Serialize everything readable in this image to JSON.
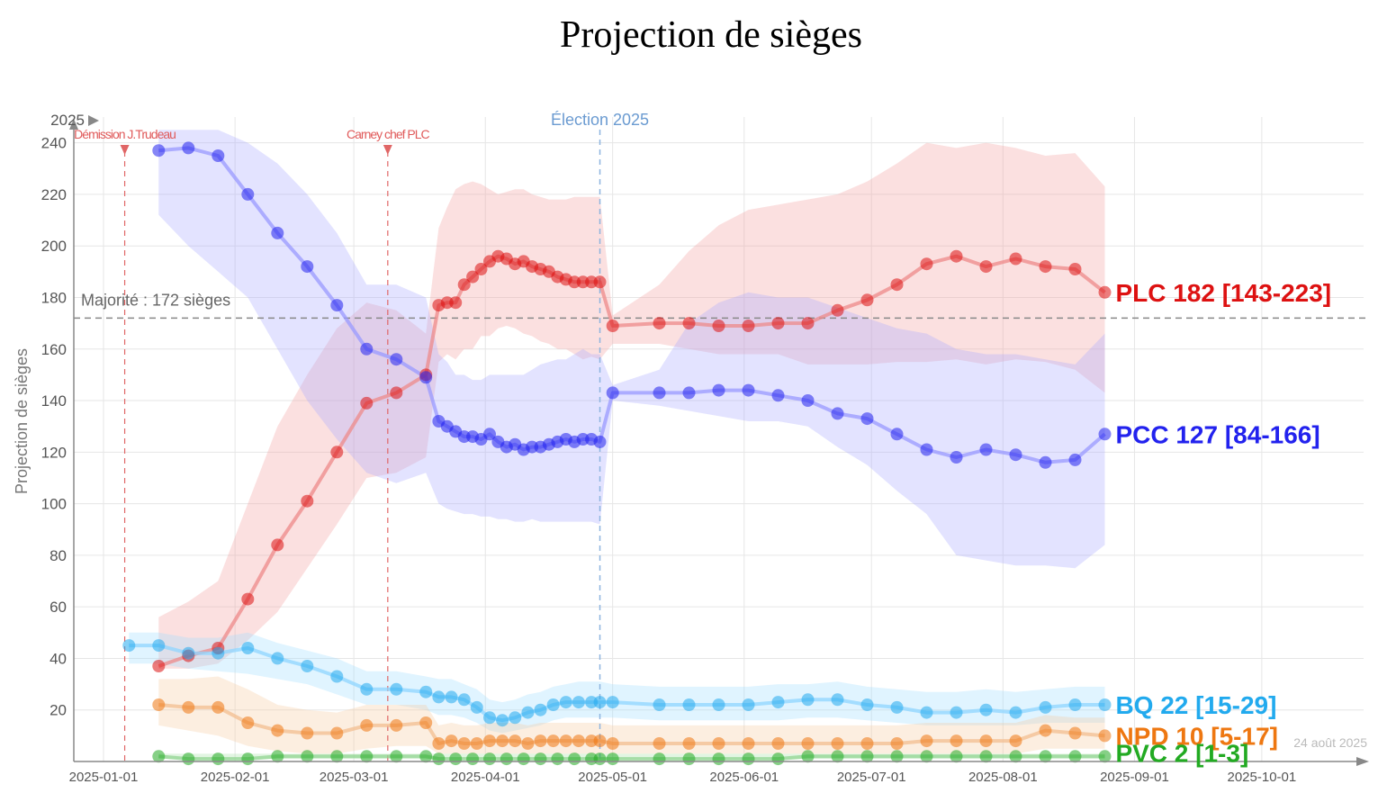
{
  "chart_data": {
    "type": "line",
    "title": "Projection de sièges",
    "ylabel": "Projection de sièges",
    "xlabel": "",
    "ylim": [
      0,
      250
    ],
    "yticks": [
      20,
      40,
      60,
      80,
      100,
      120,
      140,
      160,
      180,
      200,
      220,
      240
    ],
    "xlim": [
      "2024-12-25",
      "2025-10-25"
    ],
    "xticks": [
      {
        "date": "2025-01-01",
        "label": "2025-01-01"
      },
      {
        "date": "2025-02-01",
        "label": "2025-02-01"
      },
      {
        "date": "2025-03-01",
        "label": "2025-03-01"
      },
      {
        "date": "2025-04-01",
        "label": "2025-04-01"
      },
      {
        "date": "2025-05-01",
        "label": "2025-05-01"
      },
      {
        "date": "2025-06-01",
        "label": "2025-06-01"
      },
      {
        "date": "2025-07-01",
        "label": "2025-07-01"
      },
      {
        "date": "2025-08-01",
        "label": "2025-08-01"
      },
      {
        "date": "2025-09-01",
        "label": "2025-09-01"
      },
      {
        "date": "2025-10-01",
        "label": "2025-10-01"
      }
    ],
    "grid": true,
    "year_marker": "2025",
    "majority": {
      "value": 172,
      "label": "Majorité : 172 sièges"
    },
    "events": [
      {
        "date": "2025-01-06",
        "label": "Démission J.Trudeau"
      },
      {
        "date": "2025-03-09",
        "label": "Carney chef PLC"
      }
    ],
    "election": {
      "date": "2025-04-28",
      "label": "Élection 2025"
    },
    "date_stamp": "24 août 2025",
    "series": [
      {
        "name": "PLC",
        "color": "#dd1111",
        "end_label": "PLC 182 [143-223]",
        "x": [
          "2025-01-14",
          "2025-01-21",
          "2025-01-28",
          "2025-02-04",
          "2025-02-11",
          "2025-02-18",
          "2025-02-25",
          "2025-03-04",
          "2025-03-11",
          "2025-03-18",
          "2025-03-21",
          "2025-03-23",
          "2025-03-25",
          "2025-03-27",
          "2025-03-29",
          "2025-03-31",
          "2025-04-02",
          "2025-04-04",
          "2025-04-06",
          "2025-04-08",
          "2025-04-10",
          "2025-04-12",
          "2025-04-14",
          "2025-04-16",
          "2025-04-18",
          "2025-04-20",
          "2025-04-22",
          "2025-04-24",
          "2025-04-26",
          "2025-04-28",
          "2025-05-01",
          "2025-05-12",
          "2025-05-19",
          "2025-05-26",
          "2025-06-02",
          "2025-06-09",
          "2025-06-16",
          "2025-06-23",
          "2025-06-30",
          "2025-07-07",
          "2025-07-14",
          "2025-07-21",
          "2025-07-28",
          "2025-08-04",
          "2025-08-11",
          "2025-08-18",
          "2025-08-25"
        ],
        "values": [
          37,
          41,
          44,
          63,
          84,
          101,
          120,
          139,
          143,
          150,
          177,
          178,
          178,
          185,
          188,
          191,
          194,
          196,
          195,
          193,
          194,
          192,
          191,
          190,
          188,
          187,
          186,
          186,
          186,
          186,
          169,
          170,
          170,
          169,
          169,
          170,
          170,
          175,
          179,
          185,
          193,
          196,
          192,
          195,
          192,
          191,
          182
        ],
        "lower": [
          36,
          36,
          38,
          47,
          58,
          75,
          92,
          110,
          112,
          118,
          155,
          158,
          156,
          160,
          160,
          165,
          165,
          168,
          169,
          168,
          166,
          165,
          163,
          162,
          160,
          160,
          158,
          156,
          157,
          156,
          162,
          162,
          160,
          158,
          158,
          158,
          154,
          154,
          154,
          155,
          155,
          156,
          154,
          156,
          155,
          152,
          143
        ],
        "upper": [
          56,
          62,
          70,
          100,
          130,
          150,
          168,
          178,
          175,
          166,
          207,
          215,
          222,
          224,
          225,
          224,
          222,
          220,
          221,
          222,
          222,
          220,
          219,
          218,
          218,
          218,
          219,
          219,
          219,
          219,
          173,
          185,
          198,
          208,
          214,
          216,
          218,
          220,
          225,
          232,
          240,
          238,
          240,
          238,
          235,
          236,
          223
        ]
      },
      {
        "name": "PCC",
        "color": "#2222ee",
        "end_label": "PCC 127 [84-166]",
        "x": [
          "2025-01-14",
          "2025-01-21",
          "2025-01-28",
          "2025-02-04",
          "2025-02-11",
          "2025-02-18",
          "2025-02-25",
          "2025-03-04",
          "2025-03-11",
          "2025-03-18",
          "2025-03-21",
          "2025-03-23",
          "2025-03-25",
          "2025-03-27",
          "2025-03-29",
          "2025-03-31",
          "2025-04-02",
          "2025-04-04",
          "2025-04-06",
          "2025-04-08",
          "2025-04-10",
          "2025-04-12",
          "2025-04-14",
          "2025-04-16",
          "2025-04-18",
          "2025-04-20",
          "2025-04-22",
          "2025-04-24",
          "2025-04-26",
          "2025-04-28",
          "2025-05-01",
          "2025-05-12",
          "2025-05-19",
          "2025-05-26",
          "2025-06-02",
          "2025-06-09",
          "2025-06-16",
          "2025-06-23",
          "2025-06-30",
          "2025-07-07",
          "2025-07-14",
          "2025-07-21",
          "2025-07-28",
          "2025-08-04",
          "2025-08-11",
          "2025-08-18",
          "2025-08-25"
        ],
        "values": [
          237,
          238,
          235,
          220,
          205,
          192,
          177,
          160,
          156,
          149,
          132,
          130,
          128,
          126,
          126,
          125,
          127,
          124,
          122,
          123,
          121,
          122,
          122,
          123,
          124,
          125,
          124,
          125,
          125,
          124,
          143,
          143,
          143,
          144,
          144,
          142,
          140,
          135,
          133,
          127,
          121,
          118,
          121,
          119,
          116,
          117,
          127
        ],
        "lower": [
          212,
          200,
          190,
          180,
          160,
          140,
          125,
          112,
          108,
          112,
          100,
          98,
          97,
          96,
          96,
          95,
          95,
          94,
          94,
          93,
          93,
          94,
          93,
          93,
          93,
          93,
          93,
          93,
          93,
          92,
          140,
          138,
          136,
          134,
          132,
          132,
          130,
          122,
          115,
          105,
          96,
          80,
          78,
          76,
          76,
          75,
          84
        ],
        "upper": [
          245,
          245,
          245,
          240,
          232,
          220,
          205,
          185,
          185,
          180,
          158,
          155,
          150,
          150,
          148,
          148,
          150,
          150,
          150,
          150,
          150,
          152,
          154,
          155,
          156,
          156,
          158,
          160,
          158,
          158,
          146,
          152,
          170,
          178,
          182,
          180,
          180,
          176,
          172,
          168,
          166,
          160,
          158,
          158,
          156,
          154,
          166
        ]
      },
      {
        "name": "BQ",
        "color": "#22aaee",
        "end_label": "BQ 22 [15-29]",
        "x": [
          "2025-01-07",
          "2025-01-14",
          "2025-01-21",
          "2025-01-28",
          "2025-02-04",
          "2025-02-11",
          "2025-02-18",
          "2025-02-25",
          "2025-03-04",
          "2025-03-11",
          "2025-03-18",
          "2025-03-21",
          "2025-03-24",
          "2025-03-27",
          "2025-03-30",
          "2025-04-02",
          "2025-04-05",
          "2025-04-08",
          "2025-04-11",
          "2025-04-14",
          "2025-04-17",
          "2025-04-20",
          "2025-04-23",
          "2025-04-26",
          "2025-04-28",
          "2025-05-01",
          "2025-05-12",
          "2025-05-19",
          "2025-05-26",
          "2025-06-02",
          "2025-06-09",
          "2025-06-16",
          "2025-06-23",
          "2025-06-30",
          "2025-07-07",
          "2025-07-14",
          "2025-07-21",
          "2025-07-28",
          "2025-08-04",
          "2025-08-11",
          "2025-08-18",
          "2025-08-25"
        ],
        "values": [
          45,
          45,
          42,
          42,
          44,
          40,
          37,
          33,
          28,
          28,
          27,
          25,
          25,
          24,
          21,
          17,
          16,
          17,
          19,
          20,
          22,
          23,
          23,
          23,
          23,
          23,
          22,
          22,
          22,
          22,
          23,
          24,
          24,
          22,
          21,
          19,
          19,
          20,
          19,
          21,
          22,
          22
        ],
        "lower": [
          38,
          38,
          36,
          35,
          34,
          32,
          30,
          26,
          22,
          22,
          20,
          18,
          18,
          17,
          15,
          12,
          11,
          12,
          13,
          14,
          16,
          17,
          17,
          17,
          17,
          17,
          16,
          16,
          16,
          16,
          16,
          17,
          17,
          16,
          15,
          14,
          14,
          14,
          14,
          15,
          15,
          15
        ],
        "upper": [
          50,
          50,
          48,
          48,
          50,
          46,
          43,
          40,
          35,
          35,
          33,
          32,
          32,
          30,
          28,
          24,
          23,
          24,
          26,
          27,
          29,
          30,
          31,
          31,
          31,
          30,
          29,
          29,
          29,
          29,
          30,
          30,
          31,
          29,
          28,
          27,
          27,
          28,
          27,
          28,
          29,
          29
        ]
      },
      {
        "name": "NPD",
        "color": "#ee7711",
        "end_label": "NPD 10 [5-17]",
        "x": [
          "2025-01-14",
          "2025-01-21",
          "2025-01-28",
          "2025-02-04",
          "2025-02-11",
          "2025-02-18",
          "2025-02-25",
          "2025-03-04",
          "2025-03-11",
          "2025-03-18",
          "2025-03-21",
          "2025-03-24",
          "2025-03-27",
          "2025-03-30",
          "2025-04-02",
          "2025-04-05",
          "2025-04-08",
          "2025-04-11",
          "2025-04-14",
          "2025-04-17",
          "2025-04-20",
          "2025-04-23",
          "2025-04-26",
          "2025-04-28",
          "2025-05-01",
          "2025-05-12",
          "2025-05-19",
          "2025-05-26",
          "2025-06-02",
          "2025-06-09",
          "2025-06-16",
          "2025-06-23",
          "2025-06-30",
          "2025-07-07",
          "2025-07-14",
          "2025-07-21",
          "2025-07-28",
          "2025-08-04",
          "2025-08-11",
          "2025-08-18",
          "2025-08-25"
        ],
        "values": [
          22,
          21,
          21,
          15,
          12,
          11,
          11,
          14,
          14,
          15,
          7,
          8,
          7,
          7,
          8,
          8,
          8,
          7,
          8,
          8,
          8,
          8,
          8,
          8,
          7,
          7,
          7,
          7,
          7,
          7,
          7,
          7,
          7,
          7,
          8,
          8,
          8,
          8,
          12,
          11,
          10
        ],
        "lower": [
          14,
          12,
          10,
          6,
          4,
          3,
          3,
          5,
          6,
          6,
          3,
          3,
          3,
          3,
          3,
          3,
          3,
          3,
          3,
          3,
          3,
          3,
          3,
          3,
          3,
          3,
          3,
          3,
          3,
          3,
          3,
          3,
          3,
          3,
          3,
          3,
          3,
          3,
          5,
          5,
          5
        ],
        "upper": [
          32,
          32,
          33,
          28,
          22,
          20,
          19,
          22,
          22,
          22,
          14,
          15,
          14,
          14,
          15,
          15,
          15,
          14,
          15,
          15,
          15,
          15,
          15,
          15,
          14,
          14,
          14,
          14,
          14,
          14,
          14,
          14,
          14,
          14,
          15,
          15,
          15,
          15,
          18,
          17,
          17
        ]
      },
      {
        "name": "PVC",
        "color": "#22aa22",
        "end_label": "PVC 2 [1-3]",
        "x": [
          "2025-01-14",
          "2025-01-21",
          "2025-01-28",
          "2025-02-04",
          "2025-02-11",
          "2025-02-18",
          "2025-02-25",
          "2025-03-04",
          "2025-03-11",
          "2025-03-18",
          "2025-03-21",
          "2025-03-25",
          "2025-03-29",
          "2025-04-02",
          "2025-04-06",
          "2025-04-10",
          "2025-04-14",
          "2025-04-18",
          "2025-04-22",
          "2025-04-26",
          "2025-04-28",
          "2025-05-01",
          "2025-05-12",
          "2025-05-19",
          "2025-05-26",
          "2025-06-02",
          "2025-06-09",
          "2025-06-16",
          "2025-06-23",
          "2025-06-30",
          "2025-07-07",
          "2025-07-14",
          "2025-07-21",
          "2025-07-28",
          "2025-08-04",
          "2025-08-11",
          "2025-08-18",
          "2025-08-25"
        ],
        "values": [
          2,
          1,
          1,
          1,
          2,
          2,
          2,
          2,
          2,
          2,
          1,
          1,
          1,
          1,
          1,
          1,
          1,
          1,
          1,
          1,
          1,
          1,
          1,
          1,
          1,
          1,
          1,
          2,
          2,
          2,
          2,
          2,
          2,
          2,
          2,
          2,
          2,
          2
        ],
        "lower": [
          1,
          1,
          1,
          1,
          1,
          1,
          1,
          1,
          1,
          1,
          1,
          1,
          1,
          1,
          1,
          1,
          1,
          1,
          1,
          1,
          1,
          1,
          1,
          1,
          1,
          1,
          1,
          1,
          1,
          1,
          1,
          1,
          1,
          1,
          1,
          1,
          1,
          1
        ],
        "upper": [
          3,
          3,
          3,
          3,
          3,
          3,
          3,
          3,
          3,
          3,
          3,
          3,
          3,
          3,
          3,
          3,
          3,
          3,
          3,
          3,
          3,
          3,
          3,
          3,
          3,
          3,
          3,
          3,
          3,
          3,
          3,
          3,
          3,
          3,
          3,
          3,
          3,
          3
        ]
      }
    ]
  }
}
